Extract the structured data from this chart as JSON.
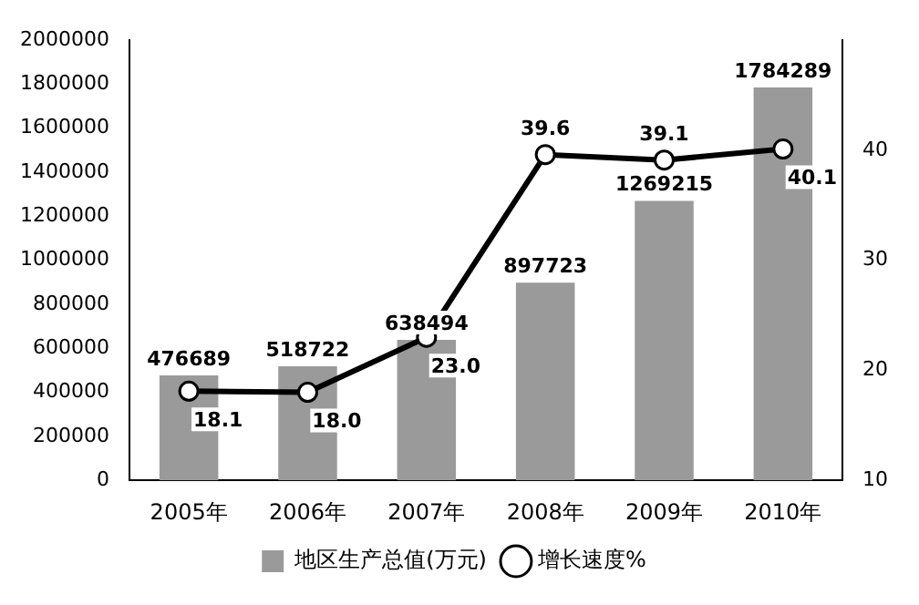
{
  "chart_data": {
    "type": "bar",
    "categories": [
      "2005年",
      "2006年",
      "2007年",
      "2008年",
      "2009年",
      "2010年"
    ],
    "series": [
      {
        "name": "地区生产总值(万元)",
        "color": "#9a9a9a",
        "values": [
          476689,
          518722,
          638494,
          897723,
          1269215,
          1784289
        ],
        "value_labels": [
          "476689",
          "518722",
          "638494",
          "897723",
          "1269215",
          "1784289"
        ]
      },
      {
        "name": "增长速度%",
        "type": "line",
        "axis": "y2",
        "color": "#000000",
        "values": [
          18.1,
          18.0,
          23.0,
          39.6,
          39.1,
          40.1
        ],
        "value_labels": [
          "18.1",
          "18.0",
          "23.0",
          "39.6",
          "39.1",
          "40.1"
        ]
      }
    ],
    "ylim": [
      0,
      2000000
    ],
    "yticks": [
      0,
      200000,
      400000,
      600000,
      800000,
      1000000,
      1200000,
      1400000,
      1600000,
      1800000,
      2000000
    ],
    "y2lim": [
      10,
      50
    ],
    "y2ticks": [
      10,
      20,
      30,
      40
    ],
    "grid": false,
    "legend": "bottom",
    "marker": "circle"
  }
}
